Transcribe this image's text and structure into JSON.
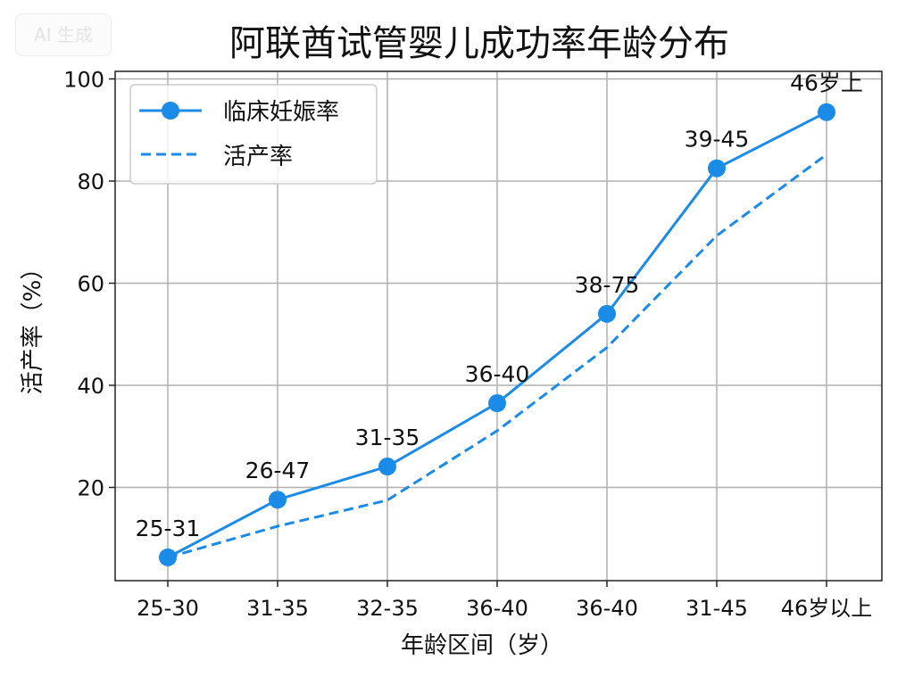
{
  "watermark": "AI 生成",
  "chart_data": {
    "type": "line",
    "title": "阿联酋试管婴儿成功率年龄分布",
    "xlabel": "年龄区间（岁）",
    "ylabel": "活产率（%）",
    "categories": [
      "25-30",
      "31-35",
      "32-35",
      "36-40",
      "36-40",
      "31-45",
      "46岁以上"
    ],
    "yticks": [
      20,
      40,
      60,
      80,
      100
    ],
    "ylim": [
      1.7,
      101
    ],
    "grid": true,
    "legend_position": "upper left",
    "series": [
      {
        "name": "临床妊娠率",
        "style": "solid-with-markers",
        "color": "#1a8be6",
        "values": [
          6.3,
          17.6,
          24.1,
          36.5,
          54.0,
          82.5,
          93.5
        ],
        "point_labels": [
          "25-31",
          "26-47",
          "31-35",
          "36-40",
          "38-75",
          "39-45",
          "46岁上"
        ]
      },
      {
        "name": "活产率",
        "style": "dashed",
        "color": "#1a8be6",
        "values": [
          6.3,
          12.4,
          17.5,
          31.1,
          47.4,
          69.3,
          85.2
        ]
      }
    ]
  }
}
